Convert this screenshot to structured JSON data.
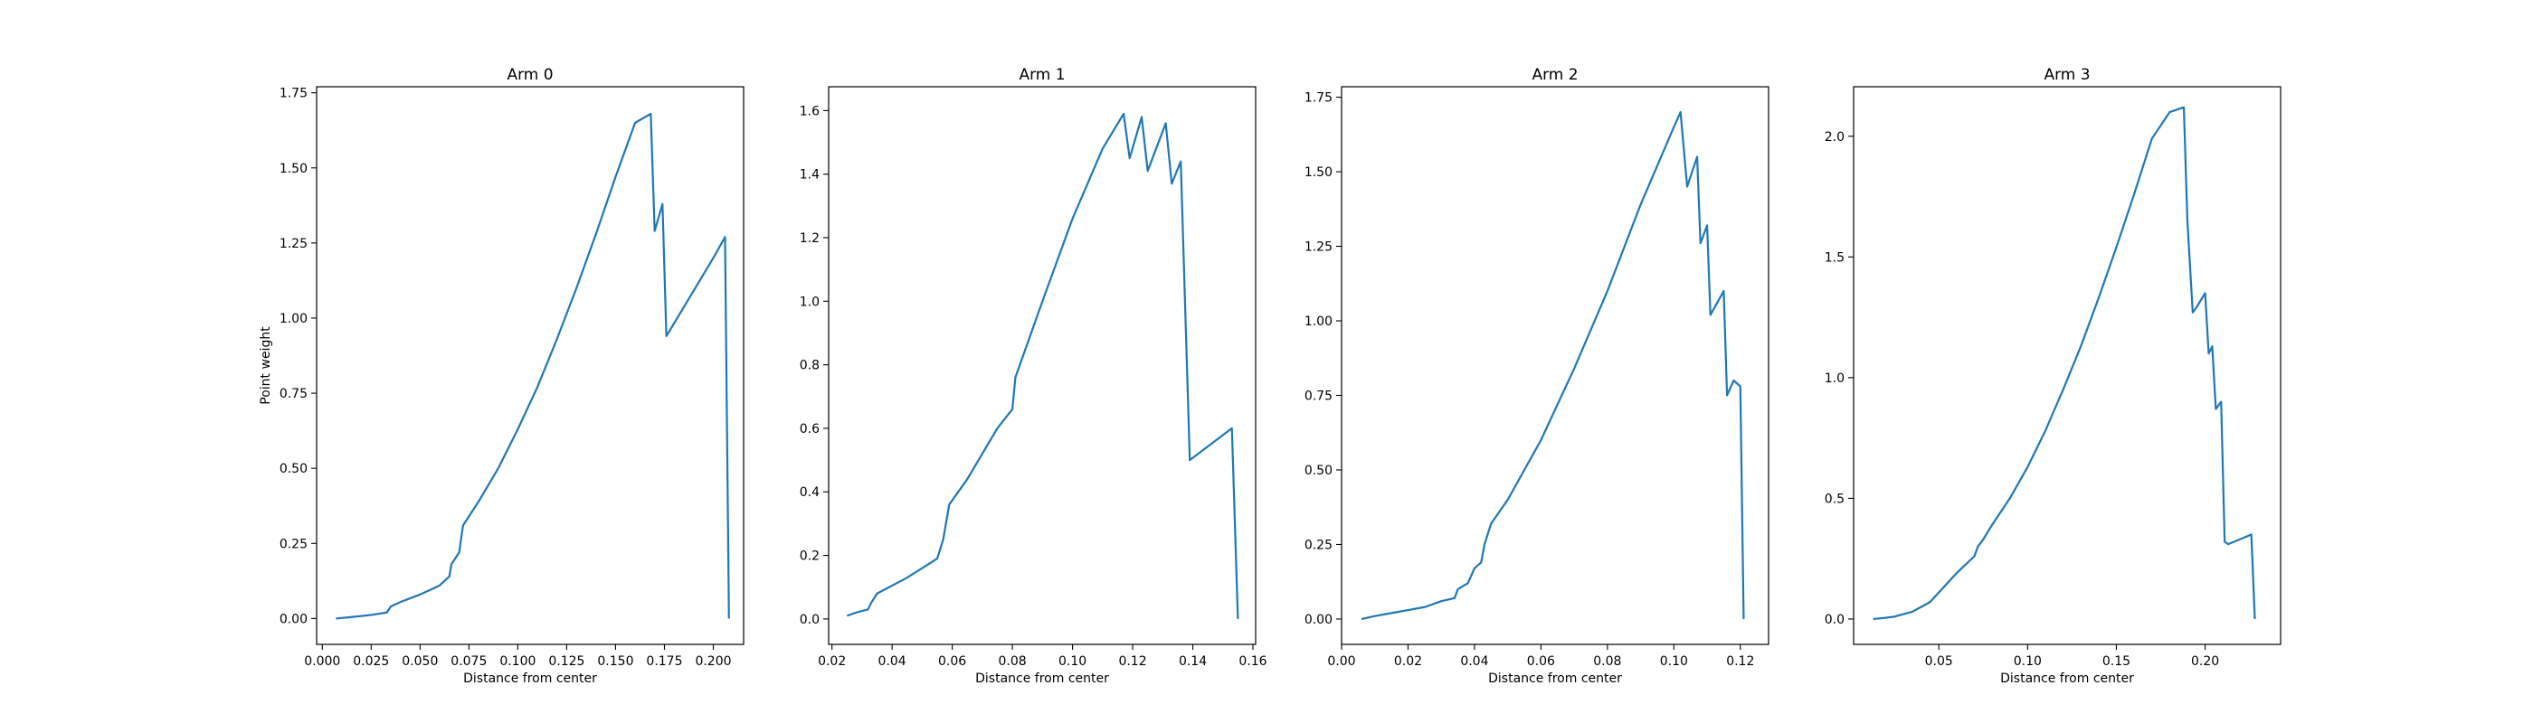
{
  "chart_data": [
    {
      "type": "line",
      "title": "Arm 0",
      "xlabel": "Distance from center",
      "ylabel": "Point weight",
      "xlim": [
        -0.0029,
        0.2155
      ],
      "ylim": [
        -0.086,
        1.77
      ],
      "xticks": [
        "0.000",
        "0.025",
        "0.050",
        "0.075",
        "0.100",
        "0.125",
        "0.150",
        "0.175",
        "0.200"
      ],
      "yticks": [
        "0.00",
        "0.25",
        "0.50",
        "0.75",
        "1.00",
        "1.25",
        "1.50",
        "1.75"
      ],
      "color": "#1f77b4",
      "series": [
        {
          "x": [
            0.007,
            0.015,
            0.025,
            0.033,
            0.035,
            0.04,
            0.05,
            0.06,
            0.065,
            0.066,
            0.07,
            0.072,
            0.08,
            0.09,
            0.1,
            0.11,
            0.12,
            0.13,
            0.14,
            0.15,
            0.16,
            0.168,
            0.17,
            0.174,
            0.176,
            0.2,
            0.206,
            0.208
          ],
          "y": [
            0.0,
            0.005,
            0.012,
            0.02,
            0.04,
            0.055,
            0.08,
            0.11,
            0.14,
            0.18,
            0.22,
            0.31,
            0.39,
            0.5,
            0.63,
            0.77,
            0.93,
            1.1,
            1.28,
            1.47,
            1.65,
            1.68,
            1.29,
            1.38,
            0.94,
            1.2,
            1.27,
            0.0
          ]
        }
      ]
    },
    {
      "type": "line",
      "title": "Arm 1",
      "xlabel": "Distance from center",
      "ylabel": "",
      "xlim": [
        0.0189,
        0.1609
      ],
      "ylim": [
        -0.08,
        1.675
      ],
      "xticks": [
        "0.02",
        "0.04",
        "0.06",
        "0.08",
        "0.10",
        "0.12",
        "0.14",
        "0.16"
      ],
      "yticks": [
        "0.0",
        "0.2",
        "0.4",
        "0.6",
        "0.8",
        "1.0",
        "1.2",
        "1.4",
        "1.6"
      ],
      "color": "#1f77b4",
      "series": [
        {
          "x": [
            0.025,
            0.028,
            0.032,
            0.033,
            0.035,
            0.045,
            0.055,
            0.057,
            0.059,
            0.065,
            0.07,
            0.075,
            0.08,
            0.081,
            0.09,
            0.1,
            0.11,
            0.117,
            0.119,
            0.123,
            0.125,
            0.131,
            0.133,
            0.136,
            0.139,
            0.153,
            0.155
          ],
          "y": [
            0.01,
            0.02,
            0.03,
            0.05,
            0.08,
            0.13,
            0.19,
            0.25,
            0.36,
            0.44,
            0.52,
            0.6,
            0.66,
            0.76,
            1.0,
            1.26,
            1.48,
            1.59,
            1.45,
            1.58,
            1.41,
            1.56,
            1.37,
            1.44,
            0.5,
            0.6,
            0.0
          ]
        }
      ]
    },
    {
      "type": "line",
      "title": "Arm 2",
      "xlabel": "Distance from center",
      "ylabel": "",
      "xlim": [
        0.0,
        0.1285
      ],
      "ylim": [
        -0.085,
        1.785
      ],
      "xticks": [
        "0.00",
        "0.02",
        "0.04",
        "0.06",
        "0.08",
        "0.10",
        "0.12"
      ],
      "yticks": [
        "0.00",
        "0.25",
        "0.50",
        "0.75",
        "1.00",
        "1.25",
        "1.50",
        "1.75"
      ],
      "color": "#1f77b4",
      "series": [
        {
          "x": [
            0.006,
            0.01,
            0.015,
            0.02,
            0.025,
            0.03,
            0.034,
            0.035,
            0.038,
            0.04,
            0.042,
            0.043,
            0.045,
            0.05,
            0.06,
            0.07,
            0.08,
            0.09,
            0.1,
            0.102,
            0.104,
            0.107,
            0.108,
            0.11,
            0.111,
            0.115,
            0.116,
            0.118,
            0.12,
            0.121
          ],
          "y": [
            0.0,
            0.01,
            0.02,
            0.03,
            0.04,
            0.06,
            0.07,
            0.1,
            0.12,
            0.17,
            0.19,
            0.25,
            0.32,
            0.4,
            0.6,
            0.84,
            1.1,
            1.39,
            1.65,
            1.7,
            1.45,
            1.55,
            1.26,
            1.32,
            1.02,
            1.1,
            0.75,
            0.8,
            0.78,
            0.0
          ]
        }
      ]
    },
    {
      "type": "line",
      "title": "Arm 3",
      "xlabel": "Distance from center",
      "ylabel": "",
      "xlim": [
        0.002,
        0.2425
      ],
      "ylim": [
        -0.105,
        2.205
      ],
      "xticks": [
        "0.05",
        "0.10",
        "0.15",
        "0.20"
      ],
      "yticks": [
        "0.0",
        "0.5",
        "1.0",
        "1.5",
        "2.0"
      ],
      "color": "#1f77b4",
      "series": [
        {
          "x": [
            0.013,
            0.02,
            0.025,
            0.03,
            0.035,
            0.04,
            0.045,
            0.05,
            0.055,
            0.06,
            0.07,
            0.072,
            0.075,
            0.08,
            0.09,
            0.1,
            0.11,
            0.12,
            0.13,
            0.14,
            0.15,
            0.16,
            0.17,
            0.18,
            0.188,
            0.19,
            0.193,
            0.195,
            0.2,
            0.202,
            0.204,
            0.206,
            0.209,
            0.211,
            0.213,
            0.226,
            0.228
          ],
          "y": [
            0.0,
            0.005,
            0.01,
            0.02,
            0.03,
            0.05,
            0.07,
            0.11,
            0.15,
            0.19,
            0.26,
            0.3,
            0.33,
            0.39,
            0.5,
            0.63,
            0.78,
            0.95,
            1.13,
            1.33,
            1.54,
            1.76,
            1.99,
            2.1,
            2.12,
            1.65,
            1.27,
            1.29,
            1.35,
            1.1,
            1.13,
            0.87,
            0.9,
            0.32,
            0.31,
            0.35,
            0.0
          ]
        }
      ]
    }
  ]
}
